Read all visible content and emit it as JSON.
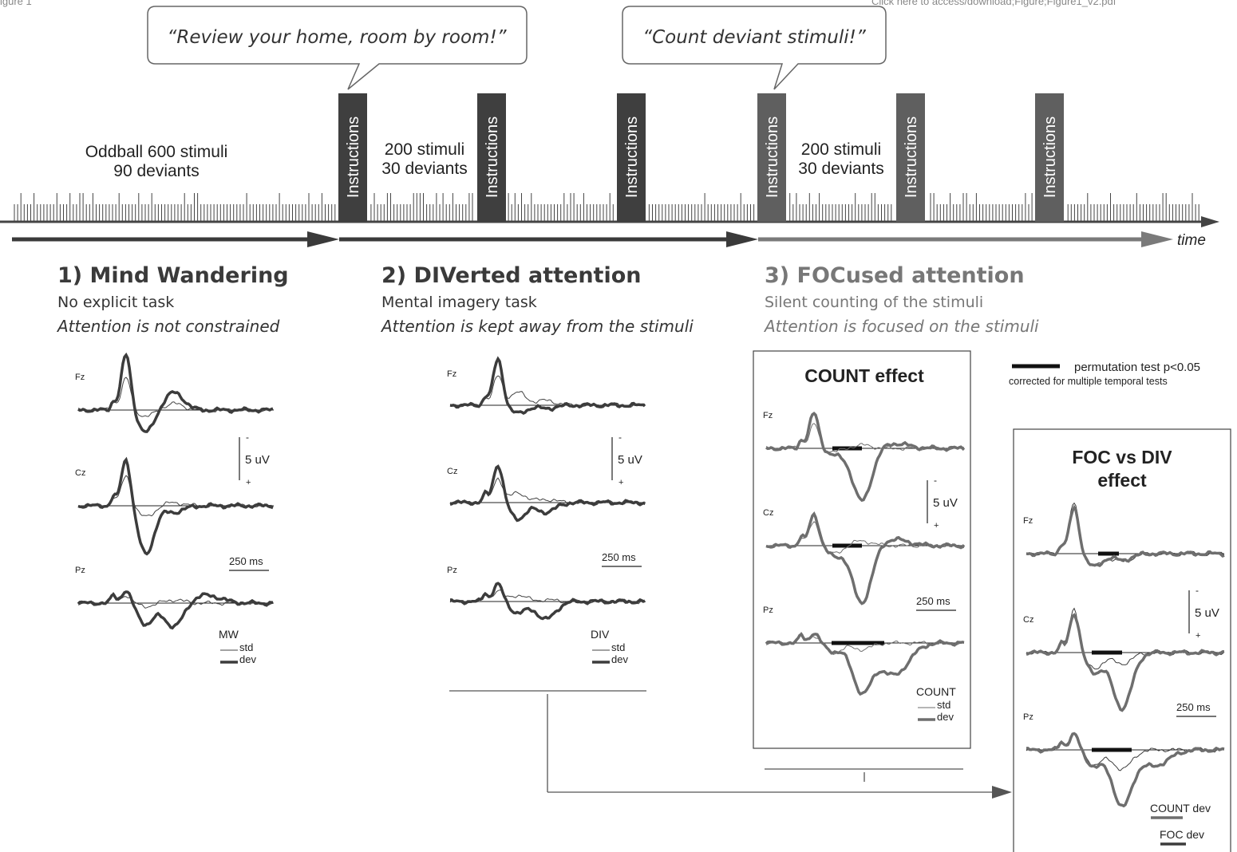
{
  "header": {
    "left": "igure 1",
    "right": "Click here to access/download;Figure;Figure1_v2.pdf"
  },
  "bubbles": {
    "review": "“Review your home, room by room!”",
    "count": "“Count deviant stimuli!”"
  },
  "blocks": {
    "instructions_label": "Instructions",
    "oddball_line1": "Oddball 600 stimuli",
    "oddball_line2": "90 deviants",
    "b2_line1": "200 stimuli",
    "b2_line2": "30 deviants",
    "b3_line1": "200 stimuli",
    "b3_line2": "30 deviants",
    "time_label": "time"
  },
  "conditions": [
    {
      "title": "1)  Mind Wandering",
      "task": "No explicit task",
      "attention": "Attention is not constrained"
    },
    {
      "title": "2)  DIVerted attention",
      "task": "Mental imagery task",
      "attention": "Attention is kept away from the stimuli"
    },
    {
      "title": "3)  FOCused attention",
      "task": "Silent counting of the stimuli",
      "attention": "Attention is focused on the stimuli"
    }
  ],
  "erp": {
    "electrodes": [
      "Fz",
      "Cz",
      "Pz"
    ],
    "scale_minus": "-",
    "scale_plus": "+",
    "scale_uv": "5 uV",
    "time_scale": "250 ms",
    "std": "std",
    "dev": "dev",
    "legend_mw": "MW",
    "legend_div": "DIV",
    "legend_count": "COUNT",
    "count_effect_title": "COUNT effect",
    "foc_div_title_1": "FOC vs DIV",
    "foc_div_title_2": "effect",
    "count_dev": "COUNT dev",
    "foc_dev": "FOC dev"
  },
  "permutation": {
    "line1": "permutation test p<0.05",
    "line2": "corrected for multiple temporal tests"
  },
  "colors": {
    "dark": "#3c3c3c",
    "gray": "#6e6e6e",
    "instr_dark": "#3f3f3f",
    "instr_gray": "#5f5f5f"
  }
}
